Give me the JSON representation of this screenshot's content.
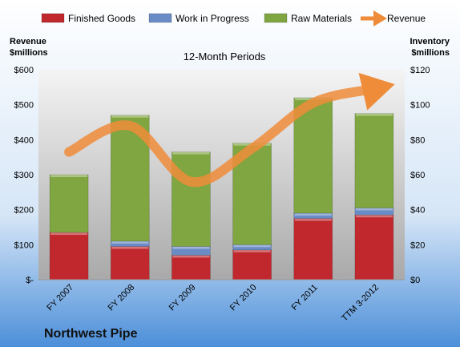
{
  "company": "Northwest Pipe",
  "chart_data": {
    "type": "bar",
    "stacked": true,
    "title": "12-Month Periods",
    "categories": [
      "FY 2007",
      "FY 2008",
      "FY 2009",
      "FY 2010",
      "FY 2011",
      "TTM 3-2012"
    ],
    "series": [
      {
        "name": "Finished Goods",
        "axis": "right",
        "color": "#c0282e",
        "values": [
          27,
          19,
          14,
          17,
          35,
          37
        ]
      },
      {
        "name": "Work in Progress",
        "axis": "right",
        "color": "#6a8cc6",
        "values": [
          0,
          3,
          5,
          3,
          3,
          4
        ]
      },
      {
        "name": "Raw Materials",
        "axis": "right",
        "color": "#7fa640",
        "values": [
          33,
          72,
          54,
          58,
          66,
          54
        ]
      },
      {
        "name": "Revenue",
        "axis": "left",
        "type": "line",
        "color": "#ee8c3a",
        "values": [
          365,
          440,
          280,
          375,
          505,
          545
        ]
      }
    ],
    "left_axis": {
      "label_line1": "Revenue",
      "label_line2": "$millions",
      "min": 0,
      "max": 600,
      "step": 100,
      "tick_labels": [
        "$-",
        "$100",
        "$200",
        "$300",
        "$400",
        "$500",
        "$600"
      ]
    },
    "right_axis": {
      "label_line1": "Inventory",
      "label_line2": "$millions",
      "min": 0,
      "max": 120,
      "step": 20,
      "tick_labels": [
        "$0",
        "$20",
        "$40",
        "$60",
        "$80",
        "$100",
        "$120"
      ]
    },
    "legend_position": "top",
    "grid": false
  }
}
